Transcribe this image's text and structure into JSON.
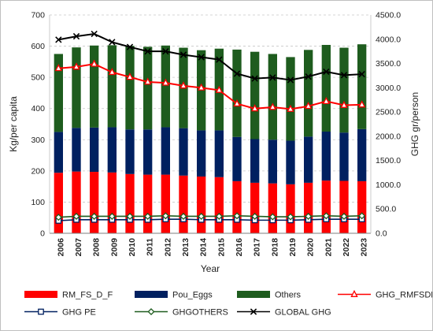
{
  "chart_data": {
    "type": "bar",
    "stacked": true,
    "categories": [
      "2006",
      "2007",
      "2008",
      "2009",
      "2010",
      "2011",
      "2012",
      "2013",
      "2014",
      "2015",
      "2016",
      "2017",
      "2018",
      "2019",
      "2020",
      "2021",
      "2022",
      "2023"
    ],
    "left_axis": {
      "label": "Kg/per capita",
      "range": [
        0,
        700
      ],
      "ticks": [
        "0",
        "100",
        "200",
        "300",
        "400",
        "500",
        "600",
        "700"
      ]
    },
    "right_axis": {
      "label": "GHG gr/person",
      "range": [
        0,
        4500
      ],
      "ticks": [
        "0.0",
        "500.0",
        "1000.0",
        "1500.0",
        "2000.0",
        "2500.0",
        "3000.0",
        "3500.0",
        "4000.0",
        "4500.0"
      ]
    },
    "xlabel": "Year",
    "grid": true,
    "legend_position": "bottom",
    "bars": [
      {
        "name": "RM_FS_D_F",
        "color": "#ff0000",
        "values": [
          194,
          198,
          197,
          195,
          190,
          188,
          188,
          185,
          182,
          180,
          167,
          162,
          160,
          157,
          162,
          169,
          168,
          167
        ]
      },
      {
        "name": "Pou_Eggs",
        "color": "#002060",
        "values": [
          131,
          140,
          142,
          145,
          143,
          145,
          152,
          152,
          148,
          150,
          142,
          140,
          140,
          140,
          148,
          157,
          155,
          167
        ]
      },
      {
        "name": "Others",
        "color": "#1e5c1e",
        "values": [
          250,
          258,
          263,
          263,
          268,
          265,
          262,
          258,
          257,
          262,
          280,
          280,
          275,
          268,
          278,
          278,
          272,
          272
        ]
      }
    ],
    "lines": [
      {
        "name": "GHG_RMFSDF",
        "color": "#ff0000",
        "marker": "triangle",
        "values": [
          3400,
          3430,
          3490,
          3320,
          3220,
          3120,
          3100,
          3040,
          3000,
          2950,
          2670,
          2570,
          2600,
          2560,
          2620,
          2720,
          2640,
          2650
        ]
      },
      {
        "name": "GHG PE",
        "color": "#002060",
        "marker": "square",
        "values": [
          260,
          280,
          280,
          280,
          280,
          280,
          290,
          290,
          280,
          280,
          280,
          270,
          270,
          270,
          280,
          290,
          290,
          290
        ]
      },
      {
        "name": "GHGOTHERS",
        "color": "#1e5c1e",
        "marker": "diamond",
        "values": [
          330,
          350,
          350,
          350,
          350,
          350,
          360,
          350,
          350,
          350,
          360,
          350,
          340,
          340,
          350,
          360,
          350,
          360
        ]
      },
      {
        "name": "GLOBAL GHG",
        "color": "#000000",
        "marker": "x",
        "values": [
          3990,
          4060,
          4110,
          3940,
          3840,
          3750,
          3750,
          3680,
          3630,
          3580,
          3290,
          3190,
          3210,
          3160,
          3230,
          3330,
          3260,
          3280
        ]
      }
    ],
    "legend": [
      {
        "name": "RM_FS_D_F",
        "kind": "bar",
        "color": "#ff0000"
      },
      {
        "name": "Pou_Eggs",
        "kind": "bar",
        "color": "#002060"
      },
      {
        "name": "Others",
        "kind": "bar",
        "color": "#1e5c1e"
      },
      {
        "name": "GHG_RMFSDF",
        "kind": "line",
        "color": "#ff0000",
        "marker": "triangle"
      },
      {
        "name": "GHG PE",
        "kind": "line",
        "color": "#002060",
        "marker": "square"
      },
      {
        "name": "GHGOTHERS",
        "kind": "line",
        "color": "#1e5c1e",
        "marker": "diamond"
      },
      {
        "name": "GLOBAL GHG",
        "kind": "line",
        "color": "#000000",
        "marker": "x"
      }
    ]
  }
}
